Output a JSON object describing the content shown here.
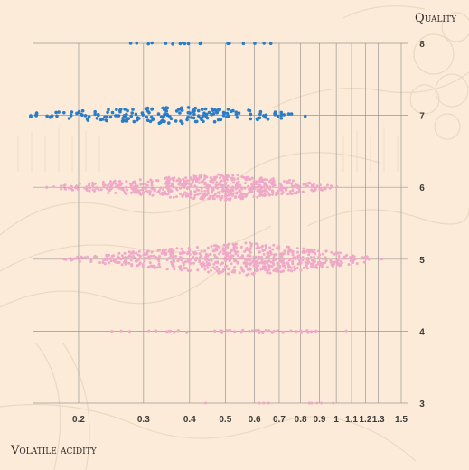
{
  "chart_data": {
    "type": "scatter",
    "title": "",
    "xlabel": "Volatile acidity",
    "ylabel": "Quality",
    "x_ticks": [
      0.2,
      0.3,
      0.4,
      0.5,
      0.6,
      0.7,
      0.8,
      0.9,
      1,
      1.1,
      1.2,
      1.3,
      1.5
    ],
    "y_ticks": [
      3,
      4,
      5,
      6,
      7,
      8
    ],
    "xlim": [
      0.15,
      1.5
    ],
    "ylim": [
      3,
      8
    ],
    "x_scale": "log",
    "grid": true,
    "colors": {
      "highlight": "#2a7cc7",
      "muted": "#f0a8c8",
      "grid": "#9d9892",
      "background": "#fbebd8"
    },
    "series": [
      {
        "highlight": false,
        "quality": 3,
        "x_min": 0.44,
        "x_max": 1.58,
        "peak": 0.6,
        "count": 10,
        "spread": 0.0
      },
      {
        "highlight": false,
        "quality": 4,
        "x_min": 0.23,
        "x_max": 1.13,
        "peak": 0.6,
        "count": 53,
        "spread": 0.04
      },
      {
        "highlight": false,
        "quality": 5,
        "x_min": 0.18,
        "x_max": 1.33,
        "peak": 0.58,
        "count": 681,
        "spread": 0.46
      },
      {
        "highlight": false,
        "quality": 6,
        "x_min": 0.16,
        "x_max": 1.04,
        "peak": 0.5,
        "count": 638,
        "spread": 0.37
      },
      {
        "highlight": true,
        "quality": 7,
        "x_min": 0.12,
        "x_max": 0.92,
        "peak": 0.37,
        "count": 199,
        "spread": 0.24
      },
      {
        "highlight": true,
        "quality": 8,
        "x_min": 0.26,
        "x_max": 0.85,
        "peak": 0.37,
        "count": 18,
        "spread": 0.03
      }
    ]
  }
}
